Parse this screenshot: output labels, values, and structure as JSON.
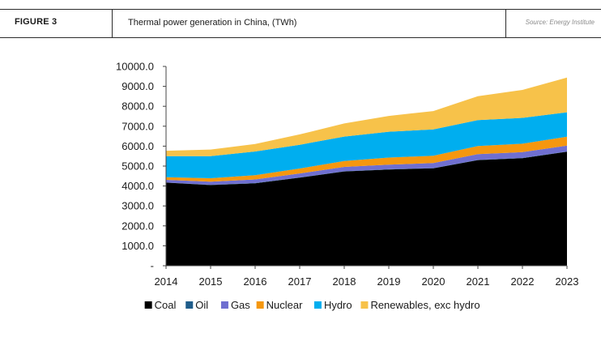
{
  "header": {
    "figure_label": "FIGURE 3",
    "title": "Thermal power generation in China, (TWh)",
    "source": "Source: Energy Institute"
  },
  "chart_data": {
    "type": "area",
    "stacked": true,
    "title": "Thermal power generation in China, (TWh)",
    "xlabel": "",
    "ylabel": "",
    "x": [
      "2014",
      "2015",
      "2016",
      "2017",
      "2018",
      "2019",
      "2020",
      "2021",
      "2022",
      "2023"
    ],
    "ylim": [
      0,
      10000
    ],
    "yticks": [
      "-",
      "1000.0",
      "2000.0",
      "3000.0",
      "4000.0",
      "5000.0",
      "6000.0",
      "7000.0",
      "8000.0",
      "9000.0",
      "10000.0"
    ],
    "grid": false,
    "legend": "bottom",
    "series": [
      {
        "name": "Coal",
        "color": "#000000",
        "values": [
          4170,
          4050,
          4140,
          4420,
          4730,
          4830,
          4890,
          5300,
          5400,
          5720
        ]
      },
      {
        "name": "Oil",
        "color": "#1f5c8a",
        "values": [
          10,
          10,
          10,
          10,
          10,
          10,
          10,
          10,
          10,
          10
        ]
      },
      {
        "name": "Gas",
        "color": "#6f6fd0",
        "values": [
          130,
          160,
          180,
          200,
          220,
          235,
          250,
          290,
          290,
          300
        ]
      },
      {
        "name": "Nuclear",
        "color": "#f5970f",
        "values": [
          130,
          170,
          210,
          250,
          290,
          350,
          370,
          410,
          420,
          440
        ]
      },
      {
        "name": "Hydro",
        "color": "#00aeef",
        "values": [
          1060,
          1110,
          1190,
          1190,
          1230,
          1300,
          1320,
          1300,
          1300,
          1230
        ]
      },
      {
        "name": "Renewables, exc hydro",
        "color": "#f7c24a",
        "values": [
          270,
          330,
          380,
          520,
          660,
          790,
          920,
          1200,
          1400,
          1740
        ]
      }
    ]
  }
}
